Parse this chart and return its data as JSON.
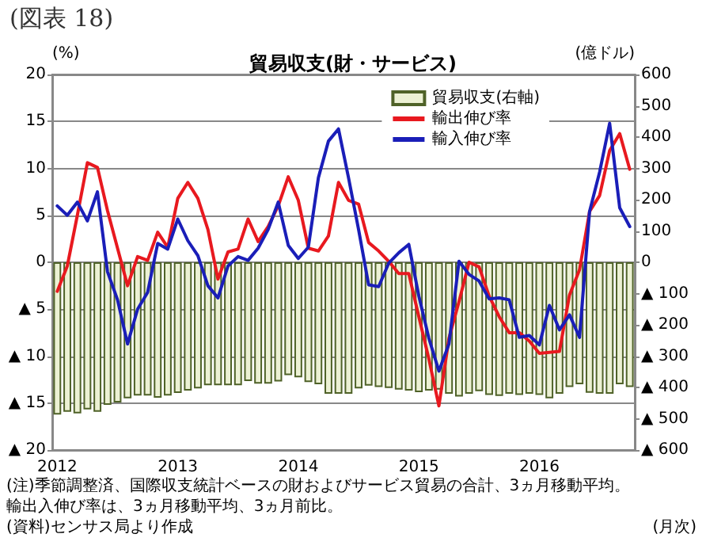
{
  "chart_data": {
    "type": "bar",
    "title": "貿易収支(財・サービス)",
    "ylabel": "(%)",
    "y2label": "(億ドル)",
    "xlabel": "(月次)",
    "annotations": [
      "(図表 18)",
      "(注)季節調整済、国際収支統計ベースの財およびサービス貿易の合計、3ヵ月移動平均。",
      "輸出入伸び率は、3ヵ月移動平均、3ヵ月前比。",
      "(資料)センサス局より作成"
    ],
    "categories": [
      "2012",
      null,
      null,
      null,
      null,
      null,
      null,
      null,
      null,
      null,
      null,
      null,
      "2013",
      null,
      null,
      null,
      null,
      null,
      null,
      null,
      null,
      null,
      null,
      null,
      "2014",
      null,
      null,
      null,
      null,
      null,
      null,
      null,
      null,
      null,
      null,
      null,
      "2015",
      null,
      null,
      null,
      null,
      null,
      null,
      null,
      null,
      null,
      null,
      null,
      "2016",
      null,
      null,
      null,
      null,
      null,
      null,
      null,
      null,
      null
    ],
    "series": [
      {
        "name": "貿易収支(右軸)",
        "axis": "y2",
        "color": "#ecf1d4",
        "values": [
          -487,
          -478,
          -483,
          -470,
          -478,
          -456,
          -448,
          -435,
          -426,
          -426,
          -433,
          -426,
          -418,
          -410,
          -403,
          -393,
          -393,
          -393,
          -393,
          -380,
          -388,
          -388,
          -381,
          -361,
          -368,
          -383,
          -390,
          -420,
          -420,
          -420,
          -403,
          -394,
          -399,
          -402,
          -407,
          -410,
          -415,
          -410,
          -407,
          -420,
          -429,
          -420,
          -412,
          -424,
          -427,
          -420,
          -424,
          -420,
          -424,
          -435,
          -420,
          -399,
          -390,
          -417,
          -420,
          -420,
          -390,
          -399
        ]
      },
      {
        "name": "輸出伸び率",
        "type": "line",
        "color": "#e8191f",
        "values": [
          -3.1,
          -0.4,
          5.0,
          10.6,
          10.1,
          5.5,
          1.5,
          -2.5,
          0.6,
          0.2,
          3.2,
          1.6,
          6.8,
          8.5,
          6.8,
          3.5,
          -1.8,
          1.1,
          1.4,
          4.6,
          2.2,
          3.8,
          6.0,
          9.1,
          6.6,
          1.5,
          1.2,
          2.8,
          8.5,
          6.6,
          6.2,
          2.1,
          1.2,
          0.1,
          -1.2,
          -1.2,
          -5.8,
          -10.3,
          -15.3,
          -8.1,
          -4.2,
          0.0,
          -0.5,
          -3.6,
          -5.8,
          -7.5,
          -7.5,
          -8.4,
          -9.7,
          -9.6,
          -9.5,
          -3.5,
          -0.8,
          5.4,
          7.1,
          11.9,
          13.7,
          9.9
        ]
      },
      {
        "name": "輸入伸び率",
        "type": "line",
        "color": "#1a1eb8",
        "values": [
          6.0,
          5.0,
          6.4,
          4.4,
          7.5,
          -1.0,
          -4.0,
          -8.7,
          -5.0,
          -3.2,
          2.0,
          1.4,
          4.6,
          2.3,
          0.7,
          -2.5,
          -3.8,
          -0.4,
          0.6,
          0.2,
          1.5,
          3.5,
          6.4,
          1.8,
          0.4,
          1.6,
          9.0,
          12.9,
          14.2,
          9.0,
          3.5,
          -2.4,
          -2.6,
          -0.1,
          1.0,
          1.9,
          -3.6,
          -8.1,
          -11.6,
          -8.7,
          0.1,
          -1.3,
          -2.0,
          -3.9,
          -3.8,
          -4.0,
          -8.0,
          -7.8,
          -8.8,
          -4.6,
          -7.2,
          -5.6,
          -8.0,
          5.4,
          9.6,
          14.8,
          5.8,
          3.8
        ]
      }
    ],
    "ylim": [
      -20,
      20
    ],
    "yticks": [
      20,
      15,
      10,
      5,
      0,
      {
        "value": -5,
        "label": "▲ 5"
      },
      {
        "value": -10,
        "label": "▲ 10"
      },
      {
        "value": -15,
        "label": "▲ 15"
      },
      {
        "value": -20,
        "label": "▲ 20"
      }
    ],
    "y2lim": [
      -600,
      600
    ],
    "y2ticks": [
      600,
      500,
      400,
      300,
      200,
      100,
      0,
      {
        "value": -100,
        "label": "▲ 100"
      },
      {
        "value": -200,
        "label": "▲ 200"
      },
      {
        "value": -300,
        "label": "▲ 300"
      },
      {
        "value": -400,
        "label": "▲ 400"
      },
      {
        "value": -500,
        "label": "▲ 500"
      },
      {
        "value": -600,
        "label": "▲ 600"
      }
    ],
    "grid": "y",
    "legend": "top right"
  }
}
